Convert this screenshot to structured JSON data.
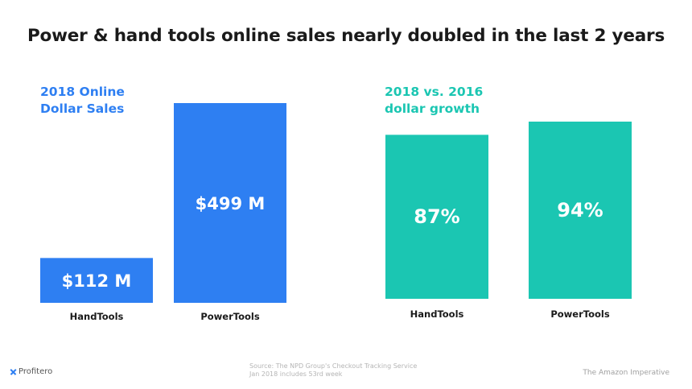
{
  "title": "Power & hand tools online sales nearly doubled in the last 2 years",
  "panels": {
    "left_label_line1": "2018 Online",
    "left_label_line2": "Dollar Sales",
    "right_label_line1": "2018 vs. 2016",
    "right_label_line2": "dollar growth"
  },
  "footer": {
    "source_line1": "Source: The NPD Group's Checkout Tracking Service",
    "source_line2": "Jan 2018 includes 53rd week",
    "right_text": "The Amazon Imperative",
    "logo_text": "Profitero"
  },
  "colors": {
    "sales_bar": "#2e7ff2",
    "growth_bar": "#1bc6b2",
    "bar_text": "#ffffff",
    "category_text": "#1a1a1a"
  },
  "chart_data": [
    {
      "type": "bar",
      "title": "2018 Online Dollar Sales",
      "categories": [
        "HandTools",
        "PowerTools"
      ],
      "values": [
        112,
        499
      ],
      "data_labels": [
        "$112 M",
        "$499 M"
      ],
      "ylabel": "",
      "xlabel": "",
      "grid": false
    },
    {
      "type": "bar",
      "title": "2018 vs. 2016 dollar growth",
      "categories": [
        "HandTools",
        "PowerTools"
      ],
      "values": [
        87,
        94
      ],
      "data_labels": [
        "87%",
        "94%"
      ],
      "ylabel": "",
      "xlabel": "",
      "grid": false
    }
  ]
}
